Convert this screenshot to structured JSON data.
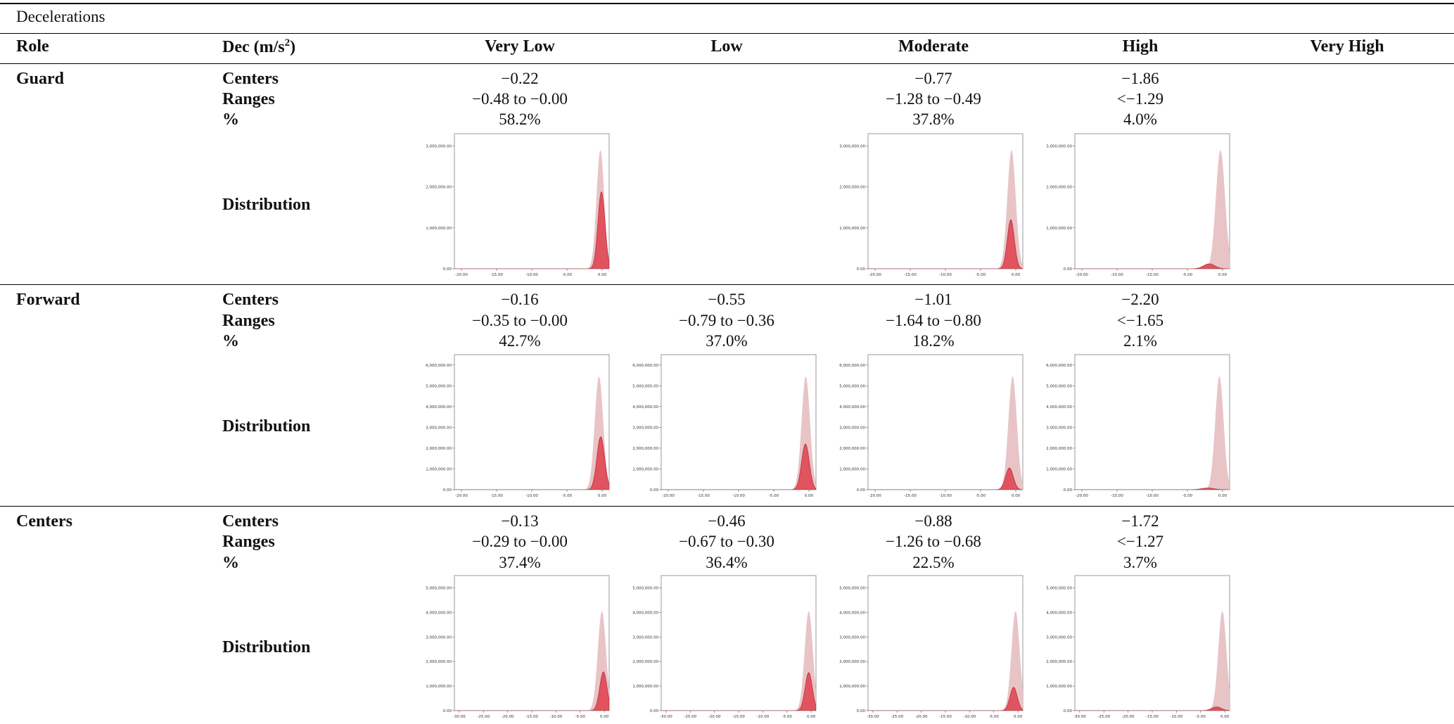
{
  "table": {
    "title": "Decelerations",
    "headers": {
      "role": "Role",
      "dec_base": "Dec (m/s",
      "dec_sup": "2",
      "dec_close": ")",
      "columns": [
        "Very Low",
        "Low",
        "Moderate",
        "High",
        "Very High"
      ]
    },
    "row_labels": {
      "centers": "Centers",
      "ranges": "Ranges",
      "percent": "%",
      "distribution": "Distribution"
    },
    "rows": [
      {
        "role": "Guard",
        "centers": [
          "−0.22",
          "",
          "−0.77",
          "−1.86",
          ""
        ],
        "ranges": [
          "−0.48 to −0.00",
          "",
          "−1.28 to −0.49",
          "<−1.29",
          ""
        ],
        "percent": [
          "58.2%",
          "",
          "37.8%",
          "4.0%",
          ""
        ]
      },
      {
        "role": "Forward",
        "centers": [
          "−0.16",
          "−0.55",
          "−1.01",
          "−2.20",
          ""
        ],
        "ranges": [
          "−0.35 to −0.00",
          "−0.79 to −0.36",
          "−1.64 to −0.80",
          "<−1.65",
          ""
        ],
        "percent": [
          "42.7%",
          "37.0%",
          "18.2%",
          "2.1%",
          ""
        ]
      },
      {
        "role": "Centers",
        "centers": [
          "−0.13",
          "−0.46",
          "−0.88",
          "−1.72",
          ""
        ],
        "ranges": [
          "−0.29 to −0.00",
          "−0.67 to −0.30",
          "−1.26 to −0.68",
          "<−1.27",
          ""
        ],
        "percent": [
          "37.4%",
          "36.4%",
          "22.5%",
          "3.7%",
          ""
        ]
      }
    ]
  },
  "colors": {
    "overall": "#e8c4c6",
    "cluster": "#e0535f",
    "cluster_edge": "#b8323f"
  },
  "chart_data": [
    {
      "type": "area",
      "row": "Guard",
      "column": "Very Low",
      "xticks": [
        "-20.00",
        "-15.00",
        "-10.00",
        "-5.00",
        "0.00"
      ],
      "xlim": [
        -21,
        1
      ],
      "yticks": [
        "0.00",
        "1,000,000.00",
        "2,000,000.00",
        "3,000,000.00"
      ],
      "ylim": [
        0,
        3300000
      ],
      "series": [
        {
          "peak": 2900000,
          "center": -0.25,
          "width": 0.55
        },
        {
          "peak": 1880000,
          "center": -0.1,
          "width": 0.5
        }
      ]
    },
    {
      "type": "area",
      "row": "Guard",
      "column": "Moderate",
      "xticks": [
        "-20.00",
        "-15.00",
        "-10.00",
        "-5.00",
        "0.00"
      ],
      "xlim": [
        -21,
        1
      ],
      "yticks": [
        "0.00",
        "1,000,000.00",
        "2,000,000.00",
        "3,000,000.00"
      ],
      "ylim": [
        0,
        3300000
      ],
      "series": [
        {
          "peak": 2900000,
          "center": -0.6,
          "width": 0.6
        },
        {
          "peak": 1200000,
          "center": -0.7,
          "width": 0.5
        }
      ]
    },
    {
      "type": "area",
      "row": "Guard",
      "column": "High",
      "xticks": [
        "-20.00",
        "-15.00",
        "-10.00",
        "-5.00",
        "0.00"
      ],
      "xlim": [
        -21,
        1
      ],
      "yticks": [
        "0.00",
        "1,000,000.00",
        "2,000,000.00",
        "3,000,000.00"
      ],
      "ylim": [
        0,
        3300000
      ],
      "series": [
        {
          "peak": 2900000,
          "center": -0.3,
          "width": 0.65
        },
        {
          "peak": 120000,
          "center": -1.9,
          "width": 0.8
        }
      ]
    },
    {
      "type": "area",
      "row": "Forward",
      "column": "Very Low",
      "xticks": [
        "-20.00",
        "-15.00",
        "-10.00",
        "-5.00",
        "0.00"
      ],
      "xlim": [
        -21,
        1
      ],
      "yticks": [
        "0.00",
        "1,000,000.00",
        "2,000,000.00",
        "3,000,000.00",
        "4,000,000.00",
        "5,000,000.00",
        "6,000,000.00"
      ],
      "ylim": [
        0,
        6500000
      ],
      "series": [
        {
          "peak": 5450000,
          "center": -0.45,
          "width": 0.6
        },
        {
          "peak": 2550000,
          "center": -0.2,
          "width": 0.55
        }
      ]
    },
    {
      "type": "area",
      "row": "Forward",
      "column": "Low",
      "xticks": [
        "-20.00",
        "-15.00",
        "-10.00",
        "-5.00",
        "0.00"
      ],
      "xlim": [
        -21,
        1
      ],
      "yticks": [
        "0.00",
        "1,000,000.00",
        "2,000,000.00",
        "3,000,000.00",
        "4,000,000.00",
        "5,000,000.00",
        "6,000,000.00"
      ],
      "ylim": [
        0,
        6500000
      ],
      "series": [
        {
          "peak": 5450000,
          "center": -0.45,
          "width": 0.6
        },
        {
          "peak": 2200000,
          "center": -0.5,
          "width": 0.55
        }
      ]
    },
    {
      "type": "area",
      "row": "Forward",
      "column": "Moderate",
      "xticks": [
        "-20.00",
        "-15.00",
        "-10.00",
        "-5.00",
        "0.00"
      ],
      "xlim": [
        -21,
        1
      ],
      "yticks": [
        "0.00",
        "1,000,000.00",
        "2,000,000.00",
        "3,000,000.00",
        "4,000,000.00",
        "5,000,000.00",
        "6,000,000.00"
      ],
      "ylim": [
        0,
        6500000
      ],
      "series": [
        {
          "peak": 5450000,
          "center": -0.45,
          "width": 0.6
        },
        {
          "peak": 1050000,
          "center": -0.9,
          "width": 0.55
        }
      ]
    },
    {
      "type": "area",
      "row": "Forward",
      "column": "High",
      "xticks": [
        "-20.00",
        "-15.00",
        "-10.00",
        "-5.00",
        "0.00"
      ],
      "xlim": [
        -21,
        1
      ],
      "yticks": [
        "0.00",
        "1,000,000.00",
        "2,000,000.00",
        "3,000,000.00",
        "4,000,000.00",
        "5,000,000.00",
        "6,000,000.00"
      ],
      "ylim": [
        0,
        6500000
      ],
      "series": [
        {
          "peak": 5450000,
          "center": -0.45,
          "width": 0.6
        },
        {
          "peak": 80000,
          "center": -2.1,
          "width": 0.9
        }
      ]
    },
    {
      "type": "area",
      "row": "Centers",
      "column": "Very Low",
      "xticks": [
        "-30.00",
        "-25.00",
        "-20.00",
        "-15.00",
        "-10.00",
        "-5.00",
        "0.00"
      ],
      "xlim": [
        -31,
        1
      ],
      "yticks": [
        "0.00",
        "1,000,000.00",
        "2,000,000.00",
        "3,000,000.00",
        "4,000,000.00",
        "5,000,000.00"
      ],
      "ylim": [
        0,
        5500000
      ],
      "series": [
        {
          "peak": 4050000,
          "center": -0.5,
          "width": 0.85
        },
        {
          "peak": 1580000,
          "center": -0.2,
          "width": 0.75
        }
      ]
    },
    {
      "type": "area",
      "row": "Centers",
      "column": "Low",
      "xticks": [
        "-30.00",
        "-25.00",
        "-20.00",
        "-15.00",
        "-10.00",
        "-5.00",
        "0.00"
      ],
      "xlim": [
        -31,
        1
      ],
      "yticks": [
        "0.00",
        "1,000,000.00",
        "2,000,000.00",
        "3,000,000.00",
        "4,000,000.00",
        "5,000,000.00"
      ],
      "ylim": [
        0,
        5500000
      ],
      "series": [
        {
          "peak": 4050000,
          "center": -0.5,
          "width": 0.85
        },
        {
          "peak": 1550000,
          "center": -0.5,
          "width": 0.75
        }
      ]
    },
    {
      "type": "area",
      "row": "Centers",
      "column": "Moderate",
      "xticks": [
        "-30.00",
        "-25.00",
        "-20.00",
        "-15.00",
        "-10.00",
        "-5.00",
        "0.00"
      ],
      "xlim": [
        -31,
        1
      ],
      "yticks": [
        "0.00",
        "1,000,000.00",
        "2,000,000.00",
        "3,000,000.00",
        "4,000,000.00",
        "5,000,000.00"
      ],
      "ylim": [
        0,
        5500000
      ],
      "series": [
        {
          "peak": 4050000,
          "center": -0.5,
          "width": 0.85
        },
        {
          "peak": 950000,
          "center": -0.9,
          "width": 0.75
        }
      ]
    },
    {
      "type": "area",
      "row": "Centers",
      "column": "High",
      "xticks": [
        "-30.00",
        "-25.00",
        "-20.00",
        "-15.00",
        "-10.00",
        "-5.00",
        "0.00"
      ],
      "xlim": [
        -31,
        1
      ],
      "yticks": [
        "0.00",
        "1,000,000.00",
        "2,000,000.00",
        "3,000,000.00",
        "4,000,000.00",
        "5,000,000.00"
      ],
      "ylim": [
        0,
        5500000
      ],
      "series": [
        {
          "peak": 4050000,
          "center": -0.5,
          "width": 0.85
        },
        {
          "peak": 150000,
          "center": -1.7,
          "width": 1.0
        }
      ]
    }
  ]
}
